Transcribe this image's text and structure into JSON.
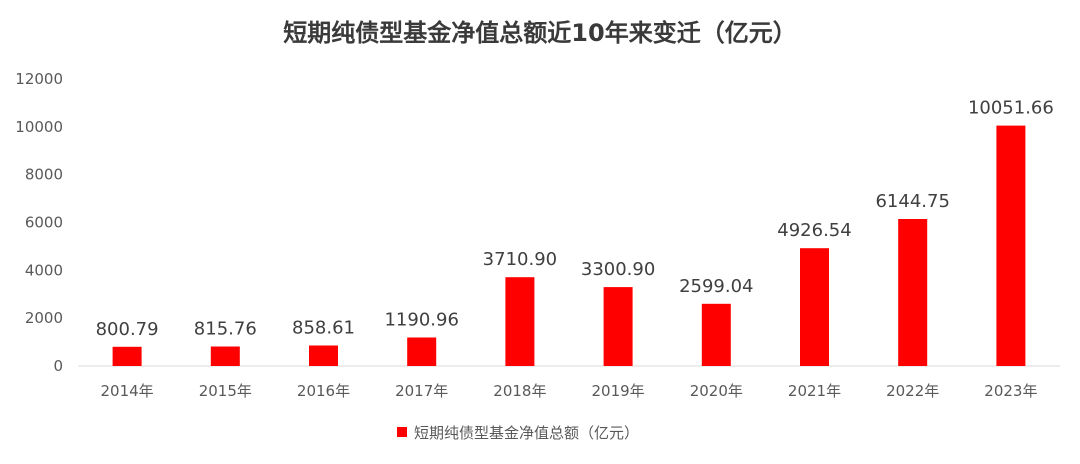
{
  "chart_data": {
    "type": "bar",
    "title": "短期纯债型基金净值总额近10年来变迁（亿元）",
    "categories": [
      "2014年",
      "2015年",
      "2016年",
      "2017年",
      "2018年",
      "2019年",
      "2020年",
      "2021年",
      "2022年",
      "2023年"
    ],
    "series": [
      {
        "name": "短期纯债型基金净值总额（亿元）",
        "values": [
          800.79,
          815.76,
          858.61,
          1190.96,
          3710.9,
          3300.9,
          2599.04,
          4926.54,
          6144.75,
          10051.66
        ],
        "data_labels": [
          "800.79",
          "815.76",
          "858.61",
          "1190.96",
          "3710.90",
          "3300.90",
          "2599.04",
          "4926.54",
          "6144.75",
          "10051.66"
        ]
      }
    ],
    "ylim": [
      0,
      12000
    ],
    "yticks": [
      "0",
      "2000",
      "4000",
      "6000",
      "8000",
      "10000",
      "12000"
    ],
    "xlabel": "",
    "ylabel": "",
    "grid": false,
    "legend_position": "bottom",
    "colors": {
      "bar": "#ff0000",
      "axis": "#d9d9d9"
    }
  }
}
